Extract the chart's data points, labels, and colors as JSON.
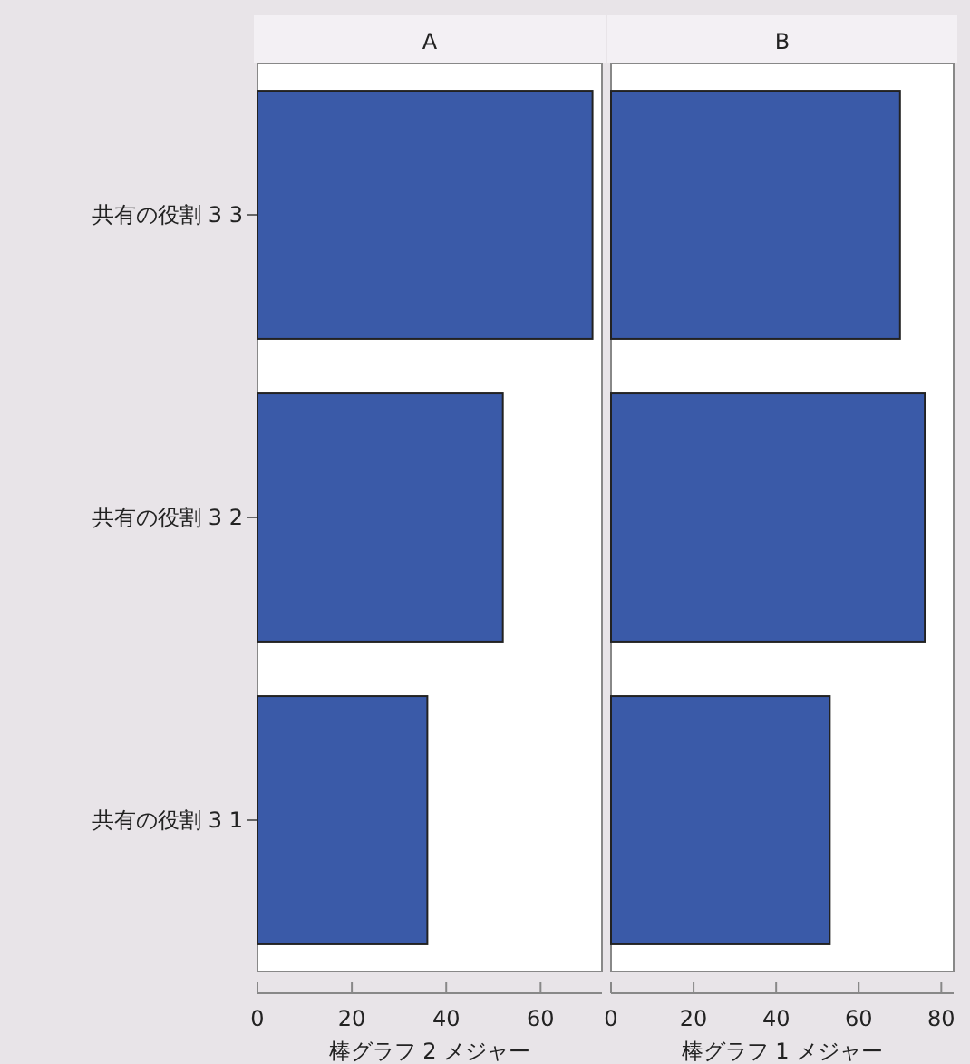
{
  "chart_data": [
    {
      "type": "bar",
      "orientation": "horizontal",
      "title": "A",
      "categories": [
        "共有の役割 3 3",
        "共有の役割 3 2",
        "共有の役割 3 1"
      ],
      "values": [
        71,
        52,
        36
      ],
      "color": "#3a5aa8",
      "xlim": [
        0,
        73
      ],
      "xticks": [
        0,
        20,
        40,
        60
      ],
      "xlabel": "棒グラフ 2 メジャー"
    },
    {
      "type": "bar",
      "orientation": "horizontal",
      "title": "B",
      "categories": [
        null,
        null,
        null
      ],
      "values": [
        70,
        76,
        53
      ],
      "color": "#3a5aa8",
      "xlim": [
        0,
        83
      ],
      "xticks": [
        0,
        20,
        40,
        60,
        80
      ],
      "xlabel": "棒グラフ 1 メジャー",
      "tick_labels": "x"
    }
  ]
}
